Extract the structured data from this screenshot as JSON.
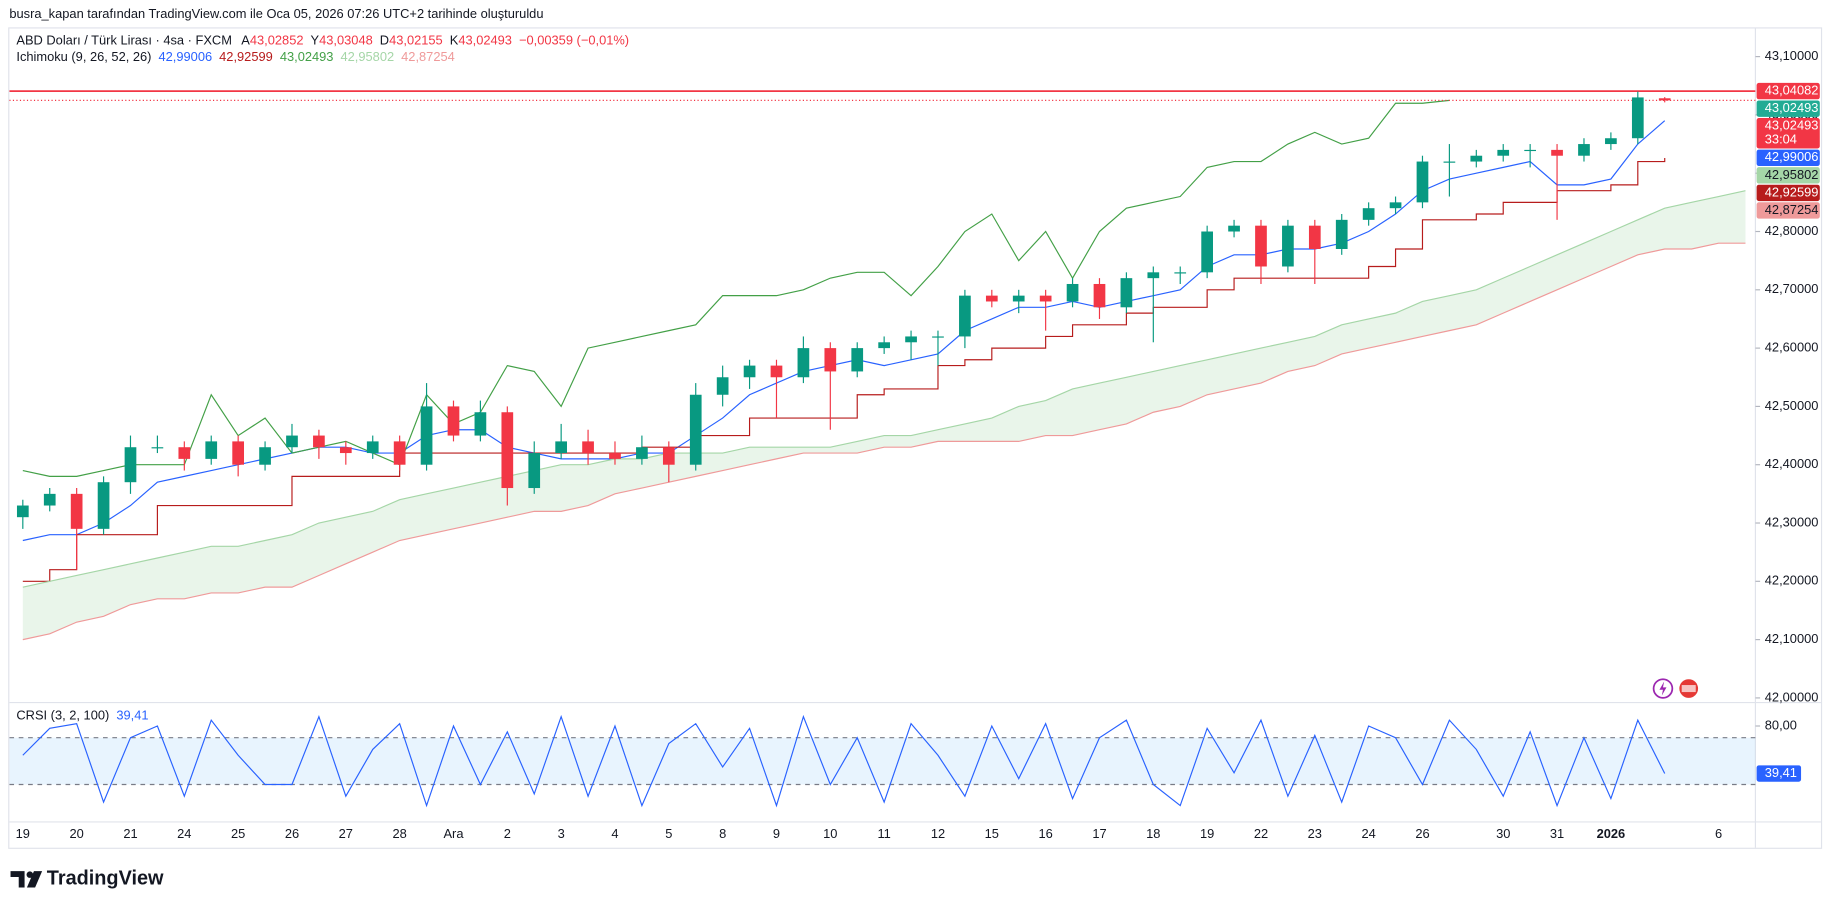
{
  "header": {
    "attribution": "busra_kapan tarafından TradingView.com ile Oca 05, 2026 07:26 UTC+2 tarihinde oluşturuldu"
  },
  "footer": {
    "brand": "TradingView"
  },
  "chart_data": [
    {
      "type": "candlestick",
      "title": "ABD Doları / Türk Lirası · 4sa · FXCM",
      "ohlc_legend": [
        {
          "label": "A",
          "value": "43,02852"
        },
        {
          "label": "Y",
          "value": "43,03048"
        },
        {
          "label": "D",
          "value": "43,02155"
        },
        {
          "label": "K",
          "value": "43,02493"
        }
      ],
      "change": "−0,00359 (−0,01%)",
      "up_color": "#089981",
      "down_color": "#f23645",
      "categories": [
        "19",
        null,
        "20",
        null,
        "21",
        null,
        "24",
        null,
        "25",
        null,
        "26",
        null,
        "27",
        null,
        "28",
        null,
        "Ara",
        null,
        "2",
        null,
        "3",
        null,
        "4",
        null,
        "5",
        null,
        "8",
        null,
        "9",
        null,
        "10",
        null,
        "11",
        null,
        "12",
        null,
        "15",
        null,
        "16",
        null,
        "17",
        null,
        "18",
        null,
        "19",
        null,
        "22",
        null,
        "23",
        null,
        "24",
        null,
        "26",
        null,
        null,
        "30",
        null,
        "31",
        null,
        "2026",
        null,
        null,
        null,
        "6",
        null
      ],
      "open": [
        42.31,
        42.33,
        42.35,
        42.29,
        42.37,
        42.43,
        42.43,
        42.41,
        42.44,
        42.4,
        42.43,
        42.45,
        42.43,
        42.42,
        42.44,
        42.4,
        42.5,
        42.45,
        42.49,
        42.36,
        42.42,
        42.44,
        42.42,
        42.41,
        42.43,
        42.4,
        42.52,
        42.55,
        42.57,
        42.55,
        42.6,
        42.56,
        42.6,
        42.61,
        42.62,
        42.62,
        42.69,
        42.68,
        42.69,
        42.68,
        42.71,
        42.67,
        42.72,
        42.73,
        42.73,
        42.8,
        42.81,
        42.74,
        42.81,
        42.77,
        42.82,
        42.84,
        42.85,
        42.92,
        42.92,
        42.93,
        42.94,
        42.94,
        42.93,
        42.95,
        42.96,
        43.02852,
        null,
        null,
        null
      ],
      "high": [
        42.34,
        42.36,
        42.36,
        42.38,
        42.45,
        42.45,
        42.44,
        42.45,
        42.45,
        42.44,
        42.47,
        42.46,
        42.44,
        42.45,
        42.45,
        42.54,
        42.51,
        42.51,
        42.5,
        42.44,
        42.47,
        42.46,
        42.44,
        42.45,
        42.44,
        42.54,
        42.57,
        42.58,
        42.58,
        42.62,
        42.61,
        42.61,
        42.62,
        42.63,
        42.63,
        42.7,
        42.7,
        42.7,
        42.7,
        42.72,
        42.72,
        42.73,
        42.74,
        42.74,
        42.81,
        42.82,
        42.82,
        42.82,
        42.82,
        42.83,
        42.85,
        42.86,
        42.93,
        42.95,
        42.94,
        42.95,
        42.95,
        42.95,
        42.96,
        42.97,
        43.04,
        43.03048,
        null,
        null,
        null
      ],
      "low": [
        42.29,
        42.32,
        42.22,
        42.28,
        42.35,
        42.42,
        42.39,
        42.4,
        42.38,
        42.39,
        42.42,
        42.41,
        42.4,
        42.41,
        42.39,
        42.39,
        42.44,
        42.44,
        42.33,
        42.35,
        42.41,
        42.4,
        42.4,
        42.4,
        42.37,
        42.39,
        42.5,
        42.53,
        42.48,
        42.54,
        42.46,
        42.55,
        42.59,
        42.58,
        42.57,
        42.6,
        42.67,
        42.66,
        42.63,
        42.67,
        42.65,
        42.66,
        42.61,
        42.71,
        42.72,
        42.79,
        42.71,
        42.73,
        42.71,
        42.76,
        42.81,
        42.83,
        42.84,
        42.86,
        42.91,
        42.92,
        42.91,
        42.82,
        42.92,
        42.94,
        42.95,
        43.02155,
        null,
        null,
        null
      ],
      "close": [
        42.33,
        42.35,
        42.29,
        42.37,
        42.43,
        42.43,
        42.41,
        42.44,
        42.4,
        42.43,
        42.45,
        42.43,
        42.42,
        42.44,
        42.4,
        42.5,
        42.45,
        42.49,
        42.36,
        42.42,
        42.44,
        42.42,
        42.41,
        42.43,
        42.4,
        42.52,
        42.55,
        42.57,
        42.55,
        42.6,
        42.56,
        42.6,
        42.61,
        42.62,
        42.62,
        42.69,
        42.68,
        42.69,
        42.68,
        42.71,
        42.67,
        42.72,
        42.73,
        42.73,
        42.8,
        42.81,
        42.74,
        42.81,
        42.77,
        42.82,
        42.84,
        42.85,
        42.92,
        42.92,
        42.93,
        42.94,
        42.94,
        42.93,
        42.95,
        42.96,
        43.03,
        43.02493,
        null,
        null,
        null
      ],
      "ylim": [
        42.0,
        43.1
      ],
      "yticks": [
        {
          "value": 42.0,
          "label": "42,00000"
        },
        {
          "value": 42.1,
          "label": "42,10000"
        },
        {
          "value": 42.2,
          "label": "42,20000"
        },
        {
          "value": 42.3,
          "label": "42,30000"
        },
        {
          "value": 42.4,
          "label": "42,40000"
        },
        {
          "value": 42.5,
          "label": "42,50000"
        },
        {
          "value": 42.6,
          "label": "42,60000"
        },
        {
          "value": 42.7,
          "label": "42,70000"
        },
        {
          "value": 42.8,
          "label": "42,80000"
        },
        {
          "value": 42.9,
          "label": "42,90000"
        },
        {
          "value": 43.0,
          "label": "43,00000"
        },
        {
          "value": 43.1,
          "label": "43,10000"
        }
      ],
      "grid": false,
      "horizontal_line": {
        "value": 43.04082,
        "color": "#f23645"
      },
      "price_tags": [
        {
          "value": 43.04082,
          "label": "43,04082",
          "color": "#f23645",
          "text_color": "#ffffff"
        },
        {
          "value": 43.02493,
          "label": "43,02493",
          "color": "#22ab94",
          "text_color": "#ffffff"
        },
        {
          "value": 43.02493,
          "label": "43,02493",
          "color": "#f23645",
          "text_color": "#ffffff",
          "countdown": "33:04"
        },
        {
          "value": 42.99006,
          "label": "42,99006",
          "color": "#2962ff",
          "text_color": "#ffffff"
        },
        {
          "value": 42.95802,
          "label": "42,95802",
          "color": "#a5d6a7",
          "text_color": "#131722"
        },
        {
          "value": 42.92599,
          "label": "42,92599",
          "color": "#b71c1c",
          "text_color": "#ffffff"
        },
        {
          "value": 42.87254,
          "label": "42,87254",
          "color": "#ef9a9a",
          "text_color": "#131722"
        }
      ],
      "indicator": {
        "name": "Ichimoku (9, 26, 52, 26)",
        "cloud_color": "#4caf50",
        "series": [
          {
            "color": "#2962ff",
            "legend_value": "42,99006",
            "values": [
              42.27,
              42.28,
              42.28,
              42.3,
              42.33,
              42.37,
              42.38,
              42.39,
              42.4,
              42.41,
              42.42,
              42.43,
              42.43,
              42.42,
              42.42,
              42.45,
              42.46,
              42.46,
              42.43,
              42.42,
              42.41,
              42.41,
              42.41,
              42.42,
              42.42,
              42.45,
              42.48,
              42.52,
              42.54,
              42.56,
              42.57,
              42.58,
              42.57,
              42.58,
              42.59,
              42.63,
              42.65,
              42.67,
              42.67,
              42.68,
              42.67,
              42.68,
              42.69,
              42.7,
              42.74,
              42.76,
              42.76,
              42.77,
              42.77,
              42.78,
              42.8,
              42.83,
              42.87,
              42.89,
              42.9,
              42.91,
              42.92,
              42.88,
              42.88,
              42.89,
              42.95,
              42.99006,
              null,
              null,
              null
            ]
          },
          {
            "color": "#b71c1c",
            "legend_value": "42,92599",
            "step": true,
            "values": [
              42.2,
              42.22,
              42.28,
              42.28,
              42.28,
              42.33,
              42.33,
              42.33,
              42.33,
              42.33,
              42.38,
              42.38,
              42.38,
              42.38,
              42.42,
              42.42,
              42.42,
              42.42,
              42.42,
              42.42,
              42.42,
              42.42,
              42.42,
              42.43,
              42.43,
              42.45,
              42.45,
              42.48,
              42.48,
              42.48,
              42.48,
              42.52,
              42.53,
              42.53,
              42.57,
              42.58,
              42.6,
              42.6,
              42.62,
              42.64,
              42.64,
              42.66,
              42.67,
              42.67,
              42.7,
              42.72,
              42.72,
              42.72,
              42.72,
              42.72,
              42.74,
              42.77,
              42.82,
              42.82,
              42.83,
              42.85,
              42.85,
              42.87,
              42.87,
              42.88,
              42.92,
              42.92599,
              null,
              null,
              null
            ]
          },
          {
            "color": "#43a047",
            "legend_value": "43,02493",
            "values": [
              42.39,
              42.38,
              42.38,
              42.39,
              42.4,
              42.4,
              42.4,
              42.52,
              42.45,
              42.48,
              42.42,
              42.43,
              42.44,
              42.42,
              42.4,
              42.52,
              42.47,
              42.49,
              42.57,
              42.56,
              42.5,
              42.6,
              42.61,
              42.62,
              42.63,
              42.64,
              42.69,
              42.69,
              42.69,
              42.7,
              42.72,
              42.73,
              42.73,
              42.69,
              42.74,
              42.8,
              42.83,
              42.75,
              42.8,
              42.72,
              42.8,
              42.84,
              42.85,
              42.86,
              42.91,
              42.92,
              42.92,
              42.95,
              42.97,
              42.95,
              42.96,
              43.02,
              43.02,
              43.02493,
              null,
              null,
              null,
              null,
              null,
              null,
              null,
              null,
              null,
              null,
              null
            ]
          },
          {
            "color": "#a5d6a7",
            "legend_value": "42,95802",
            "values": [
              42.19,
              42.2,
              42.21,
              42.22,
              42.23,
              42.24,
              42.25,
              42.26,
              42.26,
              42.27,
              42.28,
              42.3,
              42.31,
              42.32,
              42.34,
              42.35,
              42.36,
              42.37,
              42.38,
              42.39,
              42.4,
              42.4,
              42.41,
              42.41,
              42.42,
              42.42,
              42.42,
              42.43,
              42.43,
              42.43,
              42.43,
              42.44,
              42.45,
              42.45,
              42.46,
              42.47,
              42.48,
              42.5,
              42.51,
              42.53,
              42.54,
              42.55,
              42.56,
              42.57,
              42.58,
              42.59,
              42.6,
              42.61,
              42.62,
              42.64,
              42.65,
              42.66,
              42.68,
              42.69,
              42.7,
              42.72,
              42.74,
              42.76,
              42.78,
              42.8,
              42.82,
              42.84,
              42.85,
              42.86,
              42.87
            ]
          },
          {
            "color": "#ef9a9a",
            "legend_value": "42,87254",
            "values": [
              42.1,
              42.11,
              42.13,
              42.14,
              42.16,
              42.17,
              42.17,
              42.18,
              42.18,
              42.19,
              42.19,
              42.21,
              42.23,
              42.25,
              42.27,
              42.28,
              42.29,
              42.3,
              42.31,
              42.32,
              42.32,
              42.33,
              42.35,
              42.36,
              42.37,
              42.38,
              42.39,
              42.4,
              42.41,
              42.42,
              42.42,
              42.42,
              42.43,
              42.43,
              42.44,
              42.44,
              42.44,
              42.44,
              42.45,
              42.45,
              42.46,
              42.47,
              42.49,
              42.5,
              42.52,
              42.53,
              42.54,
              42.56,
              42.57,
              42.59,
              42.6,
              42.61,
              42.62,
              42.63,
              42.64,
              42.66,
              42.68,
              42.7,
              42.72,
              42.74,
              42.76,
              42.77,
              42.77,
              42.78,
              42.78
            ]
          }
        ]
      }
    },
    {
      "type": "line",
      "title": "CRSI (3, 2, 100)",
      "legend_value": "39,41",
      "color": "#2962ff",
      "values": [
        55,
        78,
        82,
        15,
        70,
        80,
        20,
        85,
        55,
        30,
        30,
        88,
        20,
        60,
        82,
        12,
        80,
        30,
        75,
        22,
        88,
        20,
        80,
        12,
        65,
        82,
        45,
        78,
        12,
        88,
        30,
        70,
        15,
        82,
        55,
        20,
        80,
        35,
        82,
        18,
        70,
        85,
        30,
        12,
        78,
        40,
        85,
        20,
        72,
        15,
        80,
        70,
        30,
        85,
        60,
        20,
        75,
        12,
        70,
        18,
        85,
        39.41,
        null,
        null,
        null
      ],
      "ylim": [
        0,
        96
      ],
      "yticks": [
        {
          "value": 80,
          "label": "80,00"
        }
      ],
      "bands": [
        30,
        70
      ],
      "band_color": "#2196f3",
      "last_tag": {
        "value": 39.41,
        "label": "39,41"
      }
    }
  ]
}
